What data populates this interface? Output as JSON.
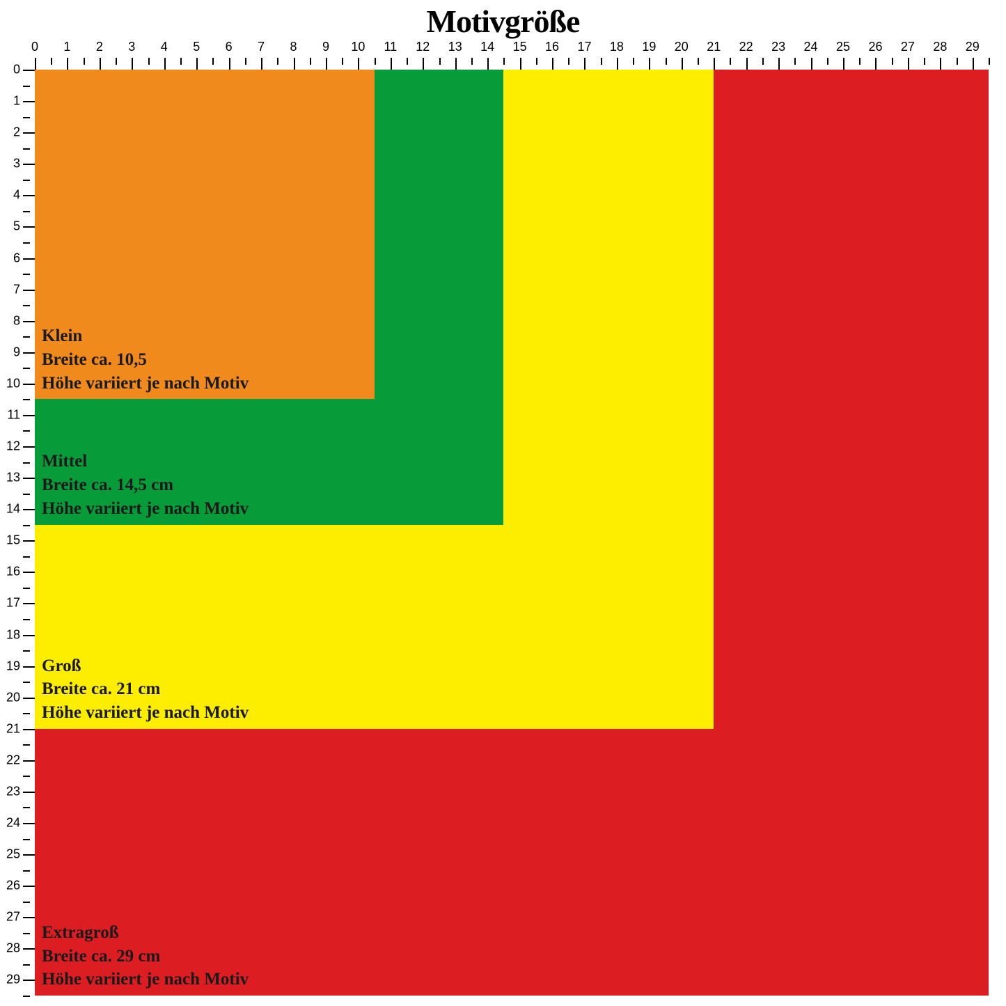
{
  "title": "Motivgröße",
  "title_fontsize": 46,
  "background_color": "#ffffff",
  "ruler": {
    "max": 29.5,
    "major_step": 1,
    "minor_step": 0.5,
    "label_fontsize": 18,
    "tick_color": "#000000"
  },
  "label_fontsize": 25,
  "sizes": [
    {
      "id": "extragross",
      "name": "Extragroß",
      "width_line": "Breite ca. 29 cm",
      "height_line": "Höhe variiert je nach Motiv",
      "extent_cm": 29.5,
      "color": "#dc1e23"
    },
    {
      "id": "gross",
      "name": "Groß",
      "width_line": "Breite ca. 21 cm",
      "height_line": "Höhe variiert je nach Motiv",
      "extent_cm": 21,
      "color": "#fdee00"
    },
    {
      "id": "mittel",
      "name": "Mittel",
      "width_line": "Breite ca. 14,5 cm",
      "height_line": "Höhe variiert je nach Motiv",
      "extent_cm": 14.5,
      "color": "#089b3a"
    },
    {
      "id": "klein",
      "name": "Klein",
      "width_line": "Breite ca. 10,5",
      "height_line": "Höhe variiert je nach Motiv",
      "extent_cm": 10.5,
      "color": "#f08a1c"
    }
  ]
}
